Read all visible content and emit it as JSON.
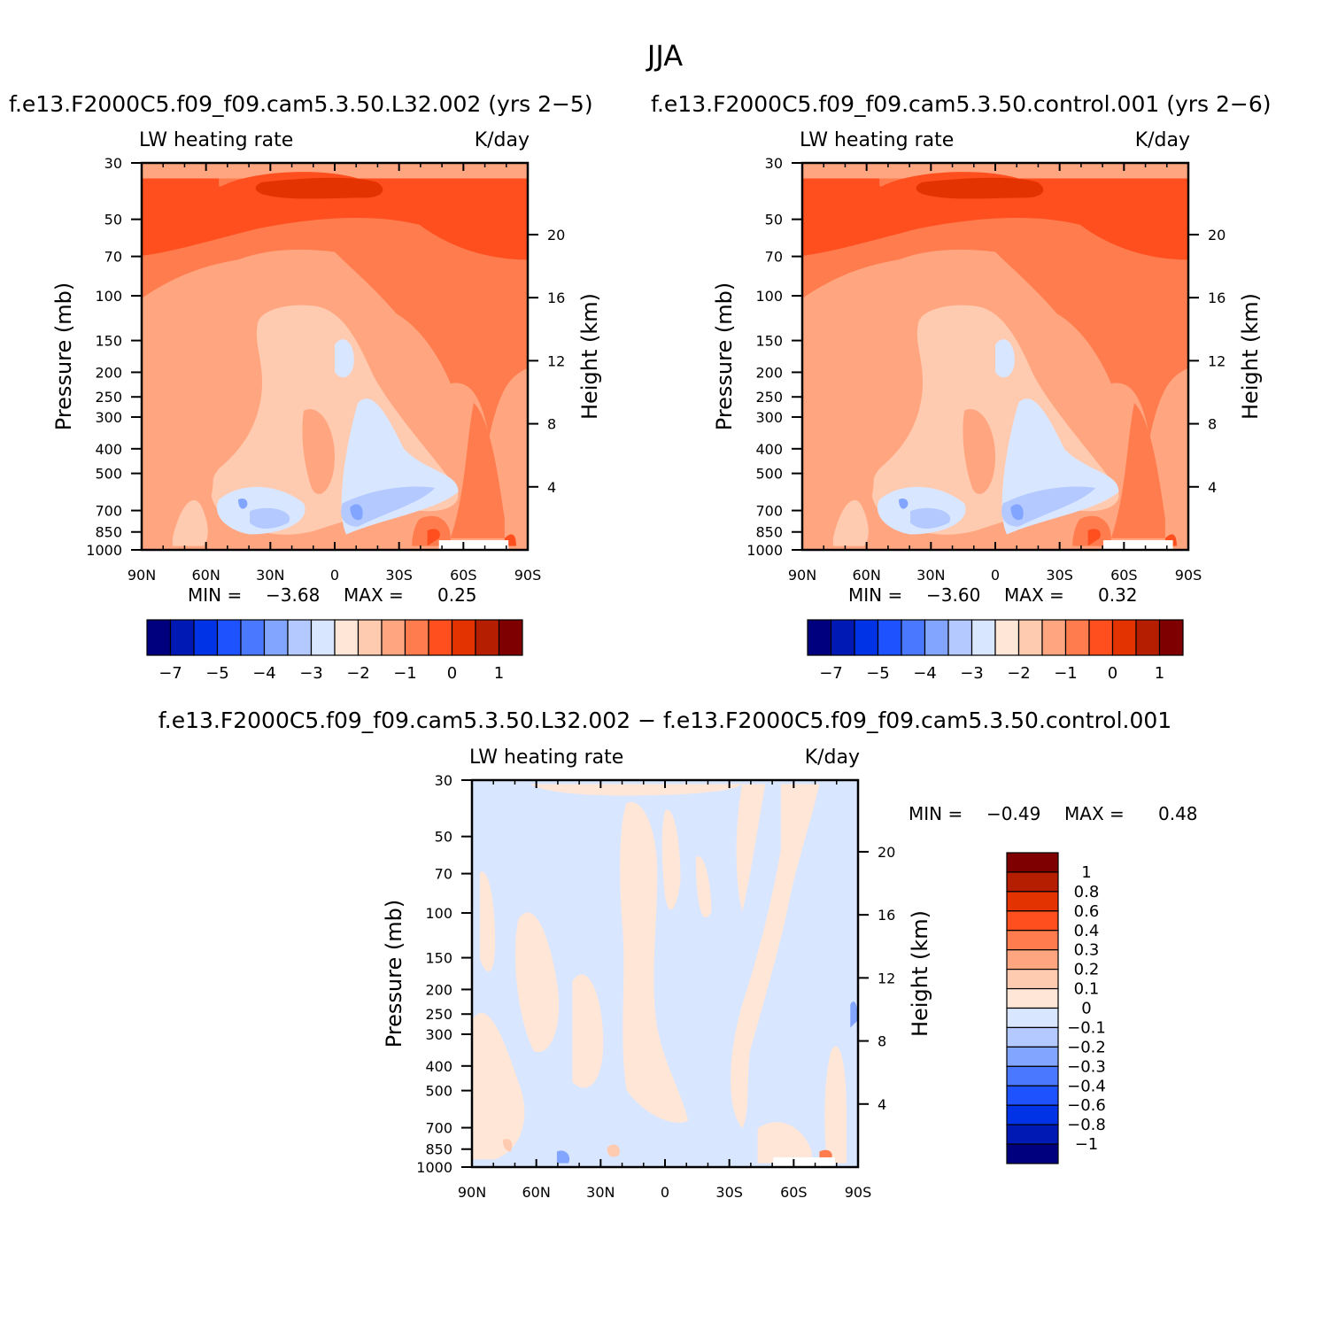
{
  "figure": {
    "title": "JJA",
    "colors": {
      "ramp": [
        "#00007f",
        "#0019b4",
        "#0033e6",
        "#1f52ff",
        "#4a78ff",
        "#82a6ff",
        "#b3c9ff",
        "#d9e6ff",
        "#ffe6d6",
        "#ffcbb0",
        "#ffa680",
        "#ff7c4e",
        "#ff4f1f",
        "#e33300",
        "#b51e00",
        "#7f0000"
      ],
      "diff_ramp": [
        "#00007f",
        "#0019b4",
        "#0033e6",
        "#1f52ff",
        "#4a78ff",
        "#82a6ff",
        "#b3c9ff",
        "#d9e6ff",
        "#ffe6d6",
        "#ffcbb0",
        "#ffa680",
        "#ff7c4e",
        "#ff4f1f",
        "#e33300",
        "#b51e00",
        "#7f0000"
      ],
      "missing": "#ffffff"
    }
  },
  "chart_data": [
    {
      "type": "heatmap",
      "run_title": "f.e13.F2000C5.f09_f09.cam5.3.50.L32.002  (yrs 2−5)",
      "left_label": "LW heating rate",
      "right_label": "K/day",
      "ylabel": "Pressure (mb)",
      "ylabel_right": "Height (km)",
      "x_ticks": [
        "90N",
        "60N",
        "30N",
        "0",
        "30S",
        "60S",
        "90S"
      ],
      "y_ticks": [
        "30",
        "50",
        "70",
        "100",
        "150",
        "200",
        "250",
        "300",
        "400",
        "500",
        "700",
        "850",
        "1000"
      ],
      "height_ticks": [
        "20",
        "16",
        "12",
        "8",
        "4"
      ],
      "min_label": "MIN =",
      "min_value": "−3.68",
      "max_label": "MAX =",
      "max_value": "0.25",
      "colorbar_ticks": [
        "−7",
        "−5",
        "−4",
        "−3",
        "−2",
        "−1",
        "0",
        "1"
      ]
    },
    {
      "type": "heatmap",
      "run_title": "f.e13.F2000C5.f09_f09.cam5.3.50.control.001  (yrs 2−6)",
      "left_label": "LW heating rate",
      "right_label": "K/day",
      "ylabel": "Pressure (mb)",
      "ylabel_right": "Height (km)",
      "x_ticks": [
        "90N",
        "60N",
        "30N",
        "0",
        "30S",
        "60S",
        "90S"
      ],
      "y_ticks": [
        "30",
        "50",
        "70",
        "100",
        "150",
        "200",
        "250",
        "300",
        "400",
        "500",
        "700",
        "850",
        "1000"
      ],
      "height_ticks": [
        "20",
        "16",
        "12",
        "8",
        "4"
      ],
      "min_label": "MIN =",
      "min_value": "−3.60",
      "max_label": "MAX =",
      "max_value": "0.32",
      "colorbar_ticks": [
        "−7",
        "−5",
        "−4",
        "−3",
        "−2",
        "−1",
        "0",
        "1"
      ]
    },
    {
      "type": "heatmap",
      "run_title": "f.e13.F2000C5.f09_f09.cam5.3.50.L32.002 − f.e13.F2000C5.f09_f09.cam5.3.50.control.001",
      "left_label": "LW heating rate",
      "right_label": "K/day",
      "ylabel": "Pressure (mb)",
      "ylabel_right": "Height (km)",
      "x_ticks": [
        "90N",
        "60N",
        "30N",
        "0",
        "30S",
        "60S",
        "90S"
      ],
      "y_ticks": [
        "30",
        "50",
        "70",
        "100",
        "150",
        "200",
        "250",
        "300",
        "400",
        "500",
        "700",
        "850",
        "1000"
      ],
      "height_ticks": [
        "20",
        "16",
        "12",
        "8",
        "4"
      ],
      "min_label": "MIN =",
      "min_value": "−0.49",
      "max_label": "MAX =",
      "max_value": "0.48",
      "colorbar_ticks": [
        "1",
        "0.8",
        "0.6",
        "0.4",
        "0.3",
        "0.2",
        "0.1",
        "0",
        "−0.1",
        "−0.2",
        "−0.3",
        "−0.4",
        "−0.6",
        "−0.8",
        "−1"
      ]
    }
  ]
}
